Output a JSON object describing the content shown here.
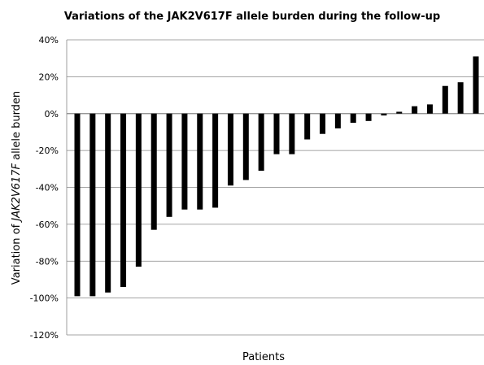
{
  "chart_data": {
    "type": "bar",
    "title": "Variations of the JAK2V617F allele burden during the follow-up",
    "xlabel": "Patients",
    "ylabel_prefix": "Variation of ",
    "ylabel_italic": "JAK2V617F",
    "ylabel_suffix": " allele burden",
    "ylim": [
      -120,
      40
    ],
    "yticks": [
      40,
      20,
      0,
      -20,
      -40,
      -60,
      -80,
      -100,
      -120
    ],
    "ytick_labels": [
      "40%",
      "20%",
      "0%",
      "-20%",
      "-40%",
      "-60%",
      "-80%",
      "-100%",
      "-120%"
    ],
    "grid": true,
    "bar_color": "#000000",
    "grid_color": "#878787",
    "values": [
      -99,
      -99,
      -97,
      -94,
      -83,
      -63,
      -56,
      -52,
      -52,
      -51,
      -39,
      -36,
      -31,
      -22,
      -22,
      -14,
      -11,
      -8,
      -5,
      -4,
      -1,
      1,
      4,
      5,
      15,
      17,
      31
    ]
  }
}
